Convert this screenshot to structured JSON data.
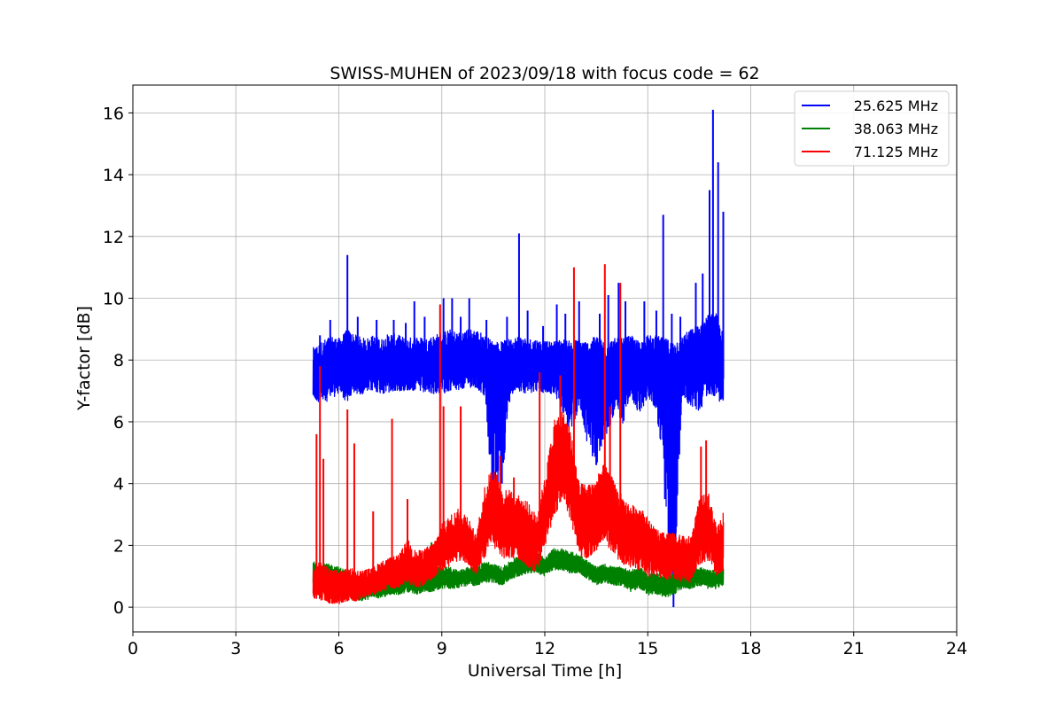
{
  "chart_data": {
    "type": "line",
    "title": "SWISS-MUHEN of 2023/09/18 with focus code = 62",
    "xlabel": "Universal Time [h]",
    "ylabel": "Y-factor [dB]",
    "xlim": [
      0,
      24
    ],
    "ylim": [
      -0.8,
      16.9
    ],
    "xticks": [
      0,
      3,
      6,
      9,
      12,
      15,
      18,
      21,
      24
    ],
    "xtick_labels": [
      "0",
      "3",
      "6",
      "9",
      "12",
      "15",
      "18",
      "21",
      "24"
    ],
    "yticks": [
      0,
      2,
      4,
      6,
      8,
      10,
      12,
      14,
      16
    ],
    "ytick_labels": [
      "0",
      "2",
      "4",
      "6",
      "8",
      "10",
      "12",
      "14",
      "16"
    ],
    "grid": true,
    "legend_position": "top-right",
    "series": [
      {
        "name": "25.625 MHz",
        "color": "#0000ff",
        "x": [
          5.25,
          5.5,
          5.75,
          6.0,
          6.25,
          6.5,
          6.75,
          7.0,
          7.25,
          7.5,
          7.75,
          8.0,
          8.25,
          8.5,
          8.75,
          9.0,
          9.25,
          9.5,
          9.75,
          10.0,
          10.25,
          10.5,
          10.75,
          11.0,
          11.25,
          11.5,
          11.75,
          12.0,
          12.25,
          12.5,
          12.75,
          13.0,
          13.25,
          13.5,
          13.75,
          14.0,
          14.25,
          14.5,
          14.75,
          15.0,
          15.25,
          15.5,
          15.75,
          16.0,
          16.25,
          16.5,
          16.75,
          17.0,
          17.2
        ],
        "y": [
          7.5,
          7.6,
          7.8,
          7.9,
          8.0,
          7.9,
          7.8,
          7.9,
          7.8,
          8.0,
          7.9,
          7.8,
          7.9,
          7.8,
          7.9,
          7.9,
          8.0,
          7.9,
          8.0,
          8.1,
          7.9,
          7.8,
          7.6,
          7.8,
          7.9,
          7.8,
          7.8,
          7.7,
          7.6,
          7.8,
          7.7,
          7.8,
          7.7,
          7.9,
          7.6,
          7.7,
          7.8,
          7.8,
          7.7,
          7.9,
          7.9,
          7.8,
          7.6,
          7.9,
          8.0,
          8.1,
          8.3,
          8.2,
          7.4
        ],
        "band_low": [
          6.7,
          6.6,
          6.7,
          6.9,
          6.6,
          6.9,
          6.9,
          7.0,
          6.9,
          6.9,
          7.0,
          7.0,
          7.0,
          6.9,
          6.9,
          6.9,
          7.0,
          7.0,
          7.1,
          7.1,
          6.8,
          3.0,
          4.0,
          6.9,
          7.0,
          6.9,
          7.0,
          6.9,
          6.9,
          6.4,
          5.5,
          6.5,
          5.2,
          4.6,
          5.3,
          6.2,
          5.8,
          6.8,
          6.2,
          6.8,
          6.4,
          3.5,
          0.0,
          6.8,
          6.5,
          6.3,
          6.9,
          6.8,
          6.5
        ],
        "band_high": [
          8.4,
          8.6,
          8.8,
          8.7,
          9.0,
          8.8,
          8.7,
          8.8,
          8.7,
          8.9,
          8.8,
          8.7,
          8.8,
          8.7,
          8.8,
          8.9,
          9.0,
          8.9,
          9.0,
          9.0,
          8.8,
          8.6,
          8.6,
          8.7,
          8.8,
          8.7,
          8.7,
          8.6,
          8.6,
          8.7,
          8.6,
          8.7,
          8.6,
          8.8,
          8.6,
          8.7,
          8.7,
          8.8,
          8.6,
          8.8,
          8.8,
          8.7,
          8.6,
          8.8,
          9.0,
          9.2,
          9.5,
          9.5,
          8.8
        ],
        "spikes": [
          [
            5.45,
            8.8
          ],
          [
            5.75,
            9.3
          ],
          [
            6.25,
            11.4
          ],
          [
            6.55,
            9.4
          ],
          [
            7.1,
            9.3
          ],
          [
            7.6,
            9.3
          ],
          [
            7.95,
            9.2
          ],
          [
            8.2,
            9.9
          ],
          [
            8.5,
            9.4
          ],
          [
            9.05,
            10.0
          ],
          [
            9.3,
            10.0
          ],
          [
            9.55,
            9.4
          ],
          [
            9.8,
            10.0
          ],
          [
            10.3,
            9.3
          ],
          [
            10.9,
            9.4
          ],
          [
            11.25,
            12.1
          ],
          [
            11.5,
            9.6
          ],
          [
            11.95,
            9.1
          ],
          [
            12.35,
            9.8
          ],
          [
            12.6,
            9.5
          ],
          [
            13.0,
            9.9
          ],
          [
            13.6,
            9.5
          ],
          [
            13.85,
            10.1
          ],
          [
            14.15,
            10.5
          ],
          [
            14.35,
            9.9
          ],
          [
            14.9,
            9.9
          ],
          [
            15.25,
            9.6
          ],
          [
            15.45,
            12.7
          ],
          [
            15.7,
            9.5
          ],
          [
            15.95,
            9.4
          ],
          [
            16.4,
            10.5
          ],
          [
            16.6,
            10.8
          ],
          [
            16.8,
            13.5
          ],
          [
            16.9,
            16.1
          ],
          [
            17.05,
            14.4
          ],
          [
            17.2,
            12.8
          ]
        ]
      },
      {
        "name": "38.063 MHz",
        "color": "#008000",
        "x": [
          5.25,
          5.5,
          5.75,
          6.0,
          6.25,
          6.5,
          6.75,
          7.0,
          7.25,
          7.5,
          7.75,
          8.0,
          8.25,
          8.5,
          8.75,
          9.0,
          9.25,
          9.5,
          9.75,
          10.0,
          10.25,
          10.5,
          10.75,
          11.0,
          11.25,
          11.5,
          11.75,
          12.0,
          12.25,
          12.5,
          12.75,
          13.0,
          13.25,
          13.5,
          13.75,
          14.0,
          14.25,
          14.5,
          14.75,
          15.0,
          15.25,
          15.5,
          15.75,
          16.0,
          16.25,
          16.5,
          16.75,
          17.0,
          17.2
        ],
        "y": [
          1.1,
          1.0,
          1.0,
          0.9,
          0.8,
          0.7,
          0.6,
          0.6,
          0.6,
          0.7,
          0.7,
          0.8,
          0.7,
          0.8,
          0.8,
          0.9,
          0.9,
          0.9,
          1.0,
          1.0,
          1.1,
          1.1,
          1.0,
          1.2,
          1.3,
          1.4,
          1.4,
          1.3,
          1.5,
          1.5,
          1.4,
          1.4,
          1.2,
          1.0,
          1.1,
          1.0,
          1.0,
          0.9,
          1.0,
          0.8,
          0.8,
          0.7,
          0.8,
          0.9,
          0.9,
          1.0,
          0.9,
          0.9,
          1.0
        ],
        "band_low": [
          0.7,
          0.6,
          0.5,
          0.4,
          0.4,
          0.2,
          0.2,
          0.3,
          0.3,
          0.4,
          0.4,
          0.5,
          0.4,
          0.5,
          0.5,
          0.6,
          0.6,
          0.6,
          0.7,
          0.7,
          0.8,
          0.8,
          0.7,
          0.9,
          1.0,
          1.1,
          1.1,
          1.0,
          1.2,
          1.2,
          1.1,
          1.1,
          0.9,
          0.7,
          0.8,
          0.7,
          0.7,
          0.5,
          0.6,
          0.4,
          0.4,
          0.3,
          0.4,
          0.6,
          0.6,
          0.7,
          0.6,
          0.6,
          0.7
        ],
        "band_high": [
          1.5,
          1.4,
          1.4,
          1.3,
          1.2,
          1.0,
          1.0,
          0.9,
          0.9,
          1.0,
          1.0,
          1.1,
          1.0,
          1.5,
          1.3,
          1.3,
          1.3,
          1.2,
          1.3,
          1.3,
          1.5,
          1.4,
          1.3,
          1.5,
          1.7,
          1.8,
          1.8,
          1.6,
          1.9,
          1.9,
          1.8,
          1.7,
          1.5,
          1.3,
          1.4,
          1.3,
          1.3,
          1.2,
          1.3,
          1.1,
          1.1,
          1.0,
          1.1,
          1.2,
          1.2,
          1.3,
          1.2,
          1.2,
          1.3
        ],
        "spikes": [
          [
            8.7,
            2.1
          ]
        ]
      },
      {
        "name": "71.125 MHz",
        "color": "#ff0000",
        "x": [
          5.25,
          5.5,
          5.75,
          6.0,
          6.25,
          6.5,
          6.75,
          7.0,
          7.25,
          7.5,
          7.75,
          8.0,
          8.25,
          8.5,
          8.75,
          9.0,
          9.25,
          9.5,
          9.75,
          10.0,
          10.25,
          10.5,
          10.75,
          11.0,
          11.25,
          11.5,
          11.75,
          12.0,
          12.25,
          12.5,
          12.75,
          13.0,
          13.25,
          13.5,
          13.75,
          14.0,
          14.25,
          14.5,
          14.75,
          15.0,
          15.25,
          15.5,
          15.75,
          16.0,
          16.25,
          16.5,
          16.75,
          17.0,
          17.2
        ],
        "y": [
          0.8,
          0.9,
          0.6,
          0.6,
          0.7,
          0.6,
          0.7,
          0.8,
          0.9,
          1.0,
          1.0,
          1.3,
          1.1,
          1.2,
          1.4,
          1.8,
          2.0,
          2.2,
          2.1,
          1.6,
          2.6,
          3.4,
          2.6,
          2.8,
          2.5,
          2.3,
          2.0,
          3.0,
          4.5,
          5.0,
          4.3,
          2.8,
          2.8,
          3.0,
          3.4,
          2.9,
          2.5,
          2.4,
          2.3,
          2.0,
          1.7,
          1.6,
          1.6,
          1.5,
          1.5,
          2.4,
          2.6,
          1.8,
          2.1
        ],
        "band_low": [
          0.3,
          0.2,
          0.1,
          0.1,
          0.2,
          0.2,
          0.3,
          0.4,
          0.5,
          0.6,
          0.6,
          0.8,
          0.6,
          0.7,
          0.9,
          1.2,
          1.3,
          1.5,
          1.4,
          1.0,
          1.6,
          2.0,
          1.5,
          1.6,
          1.5,
          1.3,
          1.1,
          1.9,
          2.8,
          3.5,
          2.8,
          1.6,
          1.6,
          1.8,
          2.1,
          1.7,
          1.4,
          1.3,
          1.2,
          1.0,
          0.9,
          0.9,
          0.9,
          0.8,
          0.8,
          1.4,
          1.5,
          1.0,
          1.2
        ],
        "band_high": [
          1.3,
          1.5,
          1.2,
          1.2,
          1.3,
          1.2,
          1.2,
          1.3,
          1.5,
          1.6,
          1.7,
          2.2,
          1.8,
          1.9,
          2.1,
          2.7,
          3.0,
          3.2,
          3.0,
          2.3,
          4.0,
          4.6,
          3.8,
          3.8,
          3.6,
          3.4,
          3.0,
          4.2,
          6.0,
          6.4,
          5.8,
          4.0,
          4.0,
          4.2,
          4.7,
          4.1,
          3.6,
          3.3,
          3.3,
          2.9,
          2.5,
          2.4,
          2.4,
          2.3,
          2.3,
          3.5,
          3.8,
          2.6,
          3.1
        ],
        "spikes": [
          [
            5.35,
            5.6
          ],
          [
            5.45,
            7.8
          ],
          [
            5.55,
            4.8
          ],
          [
            6.25,
            6.4
          ],
          [
            6.45,
            5.3
          ],
          [
            7.0,
            3.1
          ],
          [
            7.55,
            6.1
          ],
          [
            8.0,
            3.5
          ],
          [
            8.95,
            9.8
          ],
          [
            9.05,
            6.5
          ],
          [
            9.55,
            6.5
          ],
          [
            10.7,
            4.9
          ],
          [
            11.1,
            4.2
          ],
          [
            11.85,
            7.6
          ],
          [
            12.45,
            7.5
          ],
          [
            12.85,
            11.0
          ],
          [
            13.75,
            11.1
          ],
          [
            13.9,
            6.5
          ],
          [
            14.2,
            10.5
          ],
          [
            16.55,
            5.2
          ],
          [
            16.7,
            5.4
          ]
        ]
      }
    ]
  }
}
